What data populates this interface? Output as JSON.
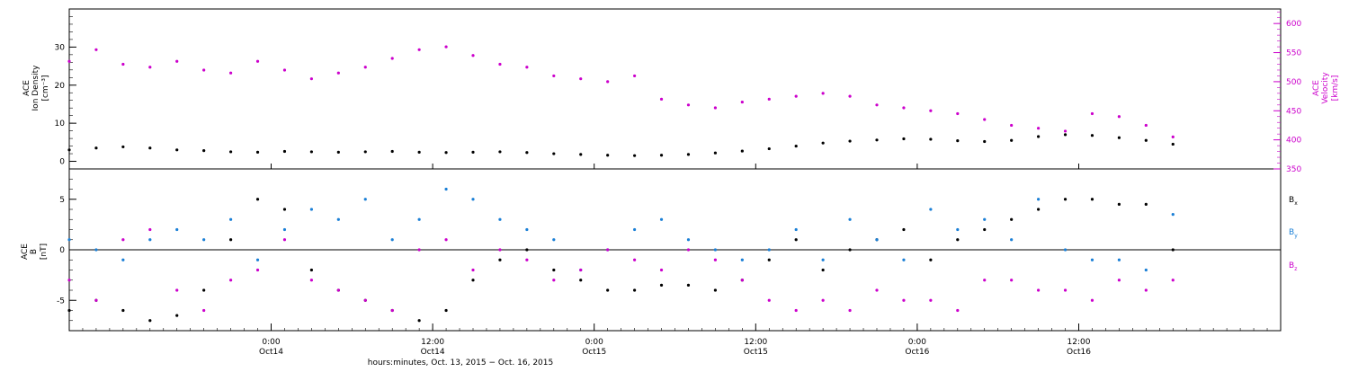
{
  "chart_data": [
    {
      "type": "scatter",
      "panel": "top",
      "left_axis": {
        "label_lines": [
          "ACE",
          "Ion Density",
          "[cm⁻³]"
        ],
        "ylim": [
          -2,
          40
        ],
        "ticks": [
          0,
          10,
          20,
          30
        ]
      },
      "right_axis": {
        "label_lines": [
          "ACE",
          "Velocity",
          "[km/s]"
        ],
        "ylim": [
          350,
          625
        ],
        "ticks": [
          350,
          400,
          450,
          500,
          550,
          600
        ],
        "color": "#cc00cc"
      },
      "series": [
        {
          "axis": "left",
          "color": "#000000",
          "x": [
            0,
            2,
            4,
            6,
            8,
            10,
            12,
            14,
            16,
            18,
            20,
            22,
            24,
            26,
            28,
            30,
            32,
            34,
            36,
            38,
            40,
            42,
            44,
            46,
            48,
            50,
            52,
            54,
            56,
            58,
            60,
            62,
            64,
            66,
            68,
            70,
            72,
            74,
            76,
            78,
            80,
            82
          ],
          "values": [
            3,
            3.5,
            3.8,
            3.5,
            3,
            2.8,
            2.5,
            2.4,
            2.6,
            2.5,
            2.4,
            2.5,
            2.6,
            2.4,
            2.3,
            2.4,
            2.5,
            2.3,
            2.0,
            1.8,
            1.6,
            1.5,
            1.6,
            1.8,
            2.2,
            2.7,
            3.3,
            4.0,
            4.8,
            5.3,
            5.6,
            5.9,
            5.8,
            5.4,
            5.2,
            5.5,
            6.5,
            7.0,
            6.8,
            6.2,
            5.5,
            4.5
          ]
        },
        {
          "axis": "right",
          "color": "#cc00cc",
          "x": [
            0,
            2,
            4,
            6,
            8,
            10,
            12,
            14,
            16,
            18,
            20,
            22,
            24,
            26,
            28,
            30,
            32,
            34,
            36,
            38,
            40,
            42,
            44,
            46,
            48,
            50,
            52,
            54,
            56,
            58,
            60,
            62,
            64,
            66,
            68,
            70,
            72,
            74,
            76,
            78,
            80,
            82
          ],
          "values": [
            535,
            555,
            530,
            525,
            535,
            520,
            515,
            535,
            520,
            505,
            515,
            525,
            540,
            555,
            560,
            545,
            530,
            525,
            510,
            505,
            500,
            510,
            470,
            460,
            455,
            465,
            470,
            475,
            480,
            475,
            460,
            455,
            450,
            445,
            435,
            425,
            420,
            415,
            445,
            440,
            425,
            405
          ]
        }
      ]
    },
    {
      "type": "scatter",
      "panel": "bottom",
      "left_axis": {
        "label_lines": [
          "ACE",
          "B",
          "[nT]"
        ],
        "ylim": [
          -8,
          8
        ],
        "ticks": [
          -5,
          0,
          5
        ]
      },
      "series": [
        {
          "name": "Bx",
          "color": "#000000",
          "x": [
            0,
            2,
            4,
            6,
            8,
            10,
            12,
            14,
            16,
            18,
            20,
            22,
            24,
            26,
            28,
            30,
            32,
            34,
            36,
            38,
            40,
            42,
            44,
            46,
            48,
            50,
            52,
            54,
            56,
            58,
            60,
            62,
            64,
            66,
            68,
            70,
            72,
            74,
            76,
            78,
            80,
            82
          ],
          "values": [
            -6,
            -5,
            -6,
            -7,
            -6.5,
            -4,
            1,
            5,
            4,
            -2,
            -4,
            -5,
            -6,
            -7,
            -6,
            -3,
            -1,
            0,
            -2,
            -3,
            -4,
            -4,
            -3.5,
            -3.5,
            -4,
            -3,
            -1,
            1,
            -2,
            0,
            1,
            2,
            -1,
            1,
            2,
            3,
            4,
            5,
            5,
            4.5,
            4.5,
            0
          ]
        },
        {
          "name": "By",
          "color": "#1a7fd6",
          "x": [
            0,
            2,
            4,
            6,
            8,
            10,
            12,
            14,
            16,
            18,
            20,
            22,
            24,
            26,
            28,
            30,
            32,
            34,
            36,
            38,
            40,
            42,
            44,
            46,
            48,
            50,
            52,
            54,
            56,
            58,
            60,
            62,
            64,
            66,
            68,
            70,
            72,
            74,
            76,
            78,
            80,
            82
          ],
          "values": [
            1,
            0,
            -1,
            1,
            2,
            1,
            3,
            -1,
            2,
            4,
            3,
            5,
            1,
            3,
            6,
            5,
            3,
            2,
            1,
            -2,
            0,
            2,
            3,
            1,
            0,
            -1,
            0,
            2,
            -1,
            3,
            1,
            -1,
            4,
            2,
            3,
            1,
            5,
            0,
            -1,
            -1,
            -2,
            3.5
          ]
        },
        {
          "name": "Bz",
          "color": "#cc00cc",
          "x": [
            0,
            2,
            4,
            6,
            8,
            10,
            12,
            14,
            16,
            18,
            20,
            22,
            24,
            26,
            28,
            30,
            32,
            34,
            36,
            38,
            40,
            42,
            44,
            46,
            48,
            50,
            52,
            54,
            56,
            58,
            60,
            62,
            64,
            66,
            68,
            70,
            72,
            74,
            76,
            78,
            80,
            82
          ],
          "values": [
            -3,
            -5,
            1,
            2,
            -4,
            -6,
            -3,
            -2,
            1,
            -3,
            -4,
            -5,
            -6,
            0,
            1,
            -2,
            0,
            -1,
            -3,
            -2,
            0,
            -1,
            -2,
            0,
            -1,
            -3,
            -5,
            -6,
            -5,
            -6,
            -4,
            -5,
            -5,
            -6,
            -3,
            -3,
            -4,
            -4,
            -5,
            -3,
            -4,
            -3
          ]
        }
      ],
      "legend": [
        "Bx",
        "By",
        "Bz"
      ],
      "legend_subscripts": [
        "x",
        "y",
        "z"
      ],
      "legend_letter": "B",
      "zero_line": true
    }
  ],
  "x_axis": {
    "range_hours": [
      0,
      90
    ],
    "ticks": [
      {
        "hours": 15,
        "time": "0:00",
        "date": "Oct14"
      },
      {
        "hours": 27,
        "time": "12:00",
        "date": "Oct14"
      },
      {
        "hours": 39,
        "time": "0:00",
        "date": "Oct15"
      },
      {
        "hours": 51,
        "time": "12:00",
        "date": "Oct15"
      },
      {
        "hours": 63,
        "time": "0:00",
        "date": "Oct16"
      },
      {
        "hours": 75,
        "time": "12:00",
        "date": "Oct16"
      }
    ],
    "label": "hours:minutes, Oct. 13, 2015 − Oct. 16, 2015"
  }
}
